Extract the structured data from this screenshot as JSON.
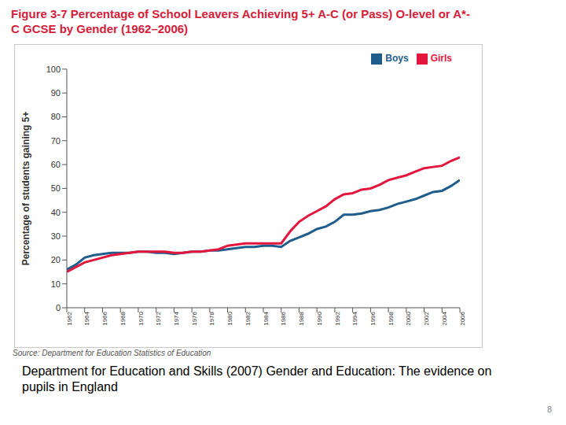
{
  "chart_data": {
    "type": "line",
    "title": "Figure 3-7 Percentage of School Leavers Achieving 5+ A-C (or Pass) O-level or A*-C GCSE by Gender (1962–2006)",
    "y_label": "Percentage of students gaining 5+",
    "source": "Source: Department for Education Statistics of Education",
    "x": [
      1962,
      1963,
      1964,
      1965,
      1966,
      1967,
      1968,
      1969,
      1970,
      1971,
      1972,
      1973,
      1974,
      1975,
      1976,
      1977,
      1978,
      1979,
      1980,
      1981,
      1982,
      1983,
      1984,
      1985,
      1986,
      1987,
      1988,
      1989,
      1990,
      1991,
      1992,
      1993,
      1994,
      1995,
      1996,
      1997,
      1998,
      1999,
      2000,
      2001,
      2002,
      2003,
      2004,
      2005,
      2006
    ],
    "series": [
      {
        "name": "Boys",
        "color": "#1f5d8c",
        "values": [
          16,
          18,
          21,
          22,
          22.5,
          23,
          23,
          23,
          23.5,
          23.5,
          23,
          23,
          22.5,
          23,
          23.5,
          23.5,
          24,
          24,
          24.5,
          25,
          25.5,
          25.5,
          26,
          26,
          25.5,
          28,
          29.5,
          31,
          33,
          34,
          36,
          39,
          39,
          39.5,
          40.5,
          41,
          42,
          43.5,
          44.5,
          45.5,
          47,
          48.5,
          49,
          51,
          53.5
        ]
      },
      {
        "name": "Girls",
        "color": "#e3173e",
        "values": [
          15,
          17,
          19,
          20,
          21,
          22,
          22.5,
          23,
          23.5,
          23.5,
          23.5,
          23.5,
          23,
          23,
          23.5,
          23.5,
          24,
          24.5,
          26,
          26.5,
          27,
          27,
          27,
          27,
          27,
          32,
          36,
          38.5,
          40.5,
          42.5,
          45.5,
          47.5,
          48,
          49.5,
          50,
          51.5,
          53.5,
          54.5,
          55.5,
          57,
          58.5,
          59,
          59.5,
          61.5,
          63
        ]
      }
    ],
    "xlim": [
      1962,
      2006
    ],
    "xticks": [
      1962,
      1964,
      1966,
      1968,
      1970,
      1972,
      1974,
      1976,
      1978,
      1980,
      1982,
      1984,
      1986,
      1988,
      1990,
      1992,
      1994,
      1996,
      1998,
      2000,
      2002,
      2004,
      2006
    ],
    "ylim": [
      0,
      100
    ],
    "yticks": [
      0,
      10,
      20,
      30,
      40,
      50,
      60,
      70,
      80,
      90,
      100
    ],
    "grid": false,
    "legend": "top right"
  },
  "caption": "Department for Education and Skills (2007) Gender and Education: The evidence on pupils in England",
  "page_number": 8
}
